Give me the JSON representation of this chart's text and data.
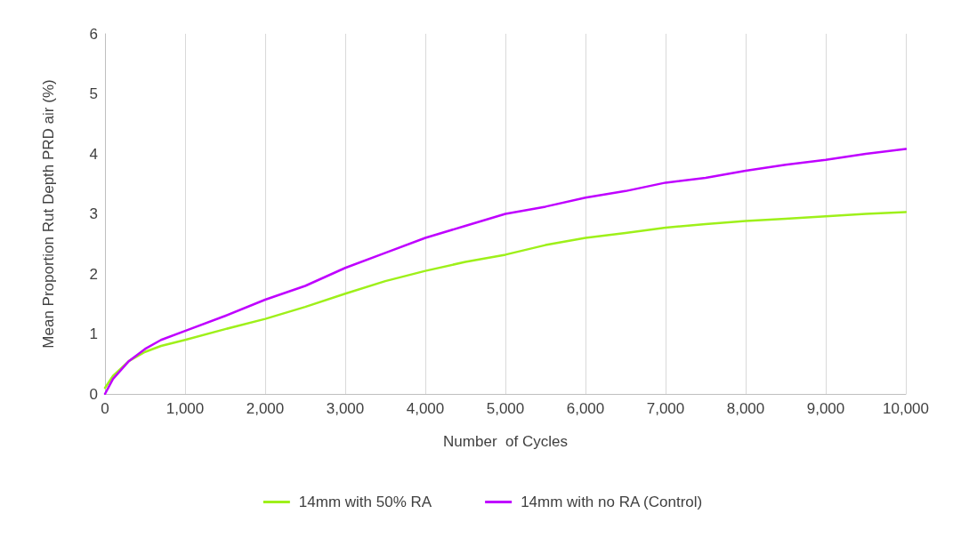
{
  "chart_data": {
    "type": "line",
    "xlabel": "Number  of Cycles",
    "ylabel": "Mean Proportion Rut Depth PRD air (%)",
    "xlim": [
      0,
      10000
    ],
    "xticks": [
      {
        "value": 0,
        "label": "0"
      },
      {
        "value": 1000,
        "label": "1,000"
      },
      {
        "value": 2000,
        "label": "2,000"
      },
      {
        "value": 3000,
        "label": "3,000"
      },
      {
        "value": 4000,
        "label": "4,000"
      },
      {
        "value": 5000,
        "label": "5,000"
      },
      {
        "value": 6000,
        "label": "6,000"
      },
      {
        "value": 7000,
        "label": "7,000"
      },
      {
        "value": 8000,
        "label": "8,000"
      },
      {
        "value": 9000,
        "label": "9,000"
      },
      {
        "value": 10000,
        "label": "10,000"
      }
    ],
    "ylim": [
      0,
      6
    ],
    "yticks": [
      0,
      1,
      2,
      3,
      4,
      5,
      6
    ],
    "grid": "x",
    "legend": "bottom",
    "marker": "none",
    "line_style": "solid",
    "x": [
      0,
      100,
      300,
      500,
      700,
      1000,
      1500,
      2000,
      2500,
      3000,
      3500,
      4000,
      4500,
      5000,
      5500,
      6000,
      6500,
      7000,
      7500,
      8000,
      8500,
      9000,
      9500,
      10000
    ],
    "series": [
      {
        "name": "14mm with 50% RA",
        "color": "#9ef01a",
        "values": [
          0.1,
          0.3,
          0.55,
          0.7,
          0.8,
          0.9,
          1.08,
          1.25,
          1.45,
          1.67,
          1.88,
          2.05,
          2.2,
          2.32,
          2.48,
          2.6,
          2.68,
          2.77,
          2.83,
          2.88,
          2.92,
          2.96,
          3.0,
          3.03
        ]
      },
      {
        "name": "14mm with no RA (Control)",
        "color": "#bf00ff",
        "values": [
          0,
          0.25,
          0.55,
          0.75,
          0.9,
          1.05,
          1.3,
          1.57,
          1.8,
          2.1,
          2.35,
          2.6,
          2.8,
          3.0,
          3.12,
          3.27,
          3.38,
          3.52,
          3.6,
          3.72,
          3.82,
          3.9,
          4.0,
          4.08
        ]
      }
    ]
  }
}
